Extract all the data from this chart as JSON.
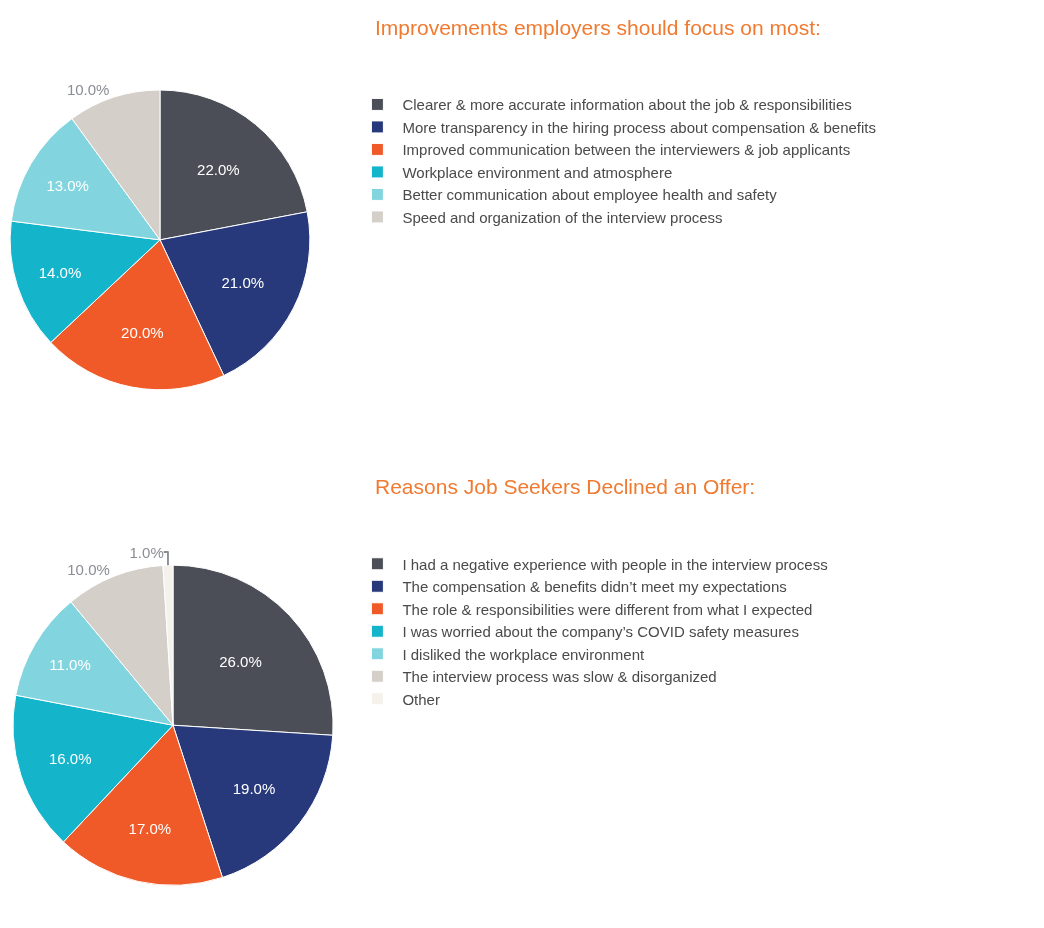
{
  "chart_data": [
    {
      "type": "pie",
      "title": "Improvements employers should focus on most:",
      "legend": "right",
      "categories": [
        "Clearer & more accurate information about the job & responsibilities",
        "More transparency in the hiring process about compensation & benefits",
        "Improved communication between the interviewers & job applicants",
        "Workplace environment and atmosphere",
        "Better communication about employee health and safety",
        "Speed and organization of the interview process"
      ],
      "values": [
        22,
        21,
        20,
        14,
        13,
        10
      ],
      "value_labels": [
        "22.0%",
        "21.0%",
        "20.0%",
        "14.0%",
        "13.0%",
        "10.0%"
      ],
      "colors": [
        "#4b4e56",
        "#27397a",
        "#f05a28",
        "#14b4cb",
        "#82d5df",
        "#d4d0c9"
      ]
    },
    {
      "type": "pie",
      "title": "Reasons Job Seekers Declined an Offer:",
      "legend": "right",
      "categories": [
        "I had a negative experience with people in the interview process",
        "The compensation & benefits didn’t meet my expectations",
        "The role & responsibilities were different from what I expected",
        "I was worried about the company’s COVID safety measures",
        "I disliked the workplace environment",
        "The interview process was slow & disorganized",
        "Other"
      ],
      "values": [
        26,
        19,
        17,
        16,
        11,
        10,
        1
      ],
      "value_labels": [
        "26.0%",
        "19.0%",
        "17.0%",
        "16.0%",
        "11.0%",
        "10.0%",
        "1.0%"
      ],
      "colors": [
        "#4b4e56",
        "#27397a",
        "#f05a28",
        "#14b4cb",
        "#82d5df",
        "#d4d0c9",
        "#f4f2eb"
      ]
    }
  ]
}
